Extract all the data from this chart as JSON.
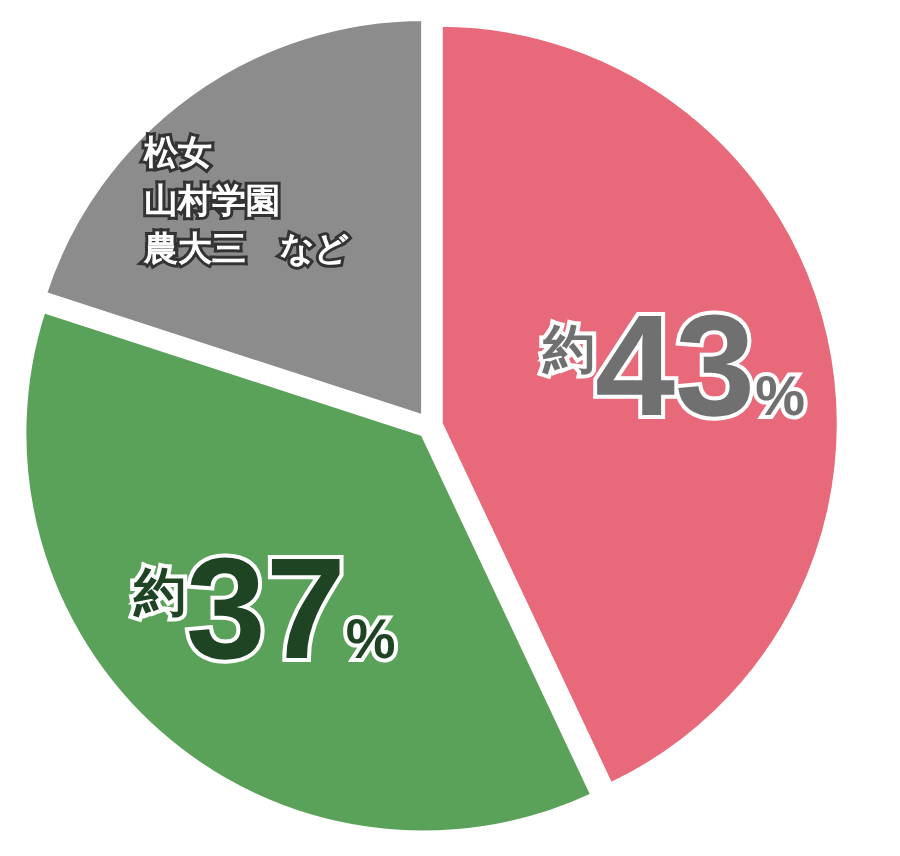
{
  "chart_data": {
    "type": "pie",
    "categories": [
      null,
      null,
      null
    ],
    "annotations": [
      "松女",
      "山村学園",
      "農大三　など"
    ],
    "values": [
      43,
      37,
      20
    ],
    "colors": [
      "#e8697a",
      "#5aa25a",
      "#8c8c8c"
    ],
    "value_labels": [
      "約43%",
      "約37%",
      null
    ]
  }
}
